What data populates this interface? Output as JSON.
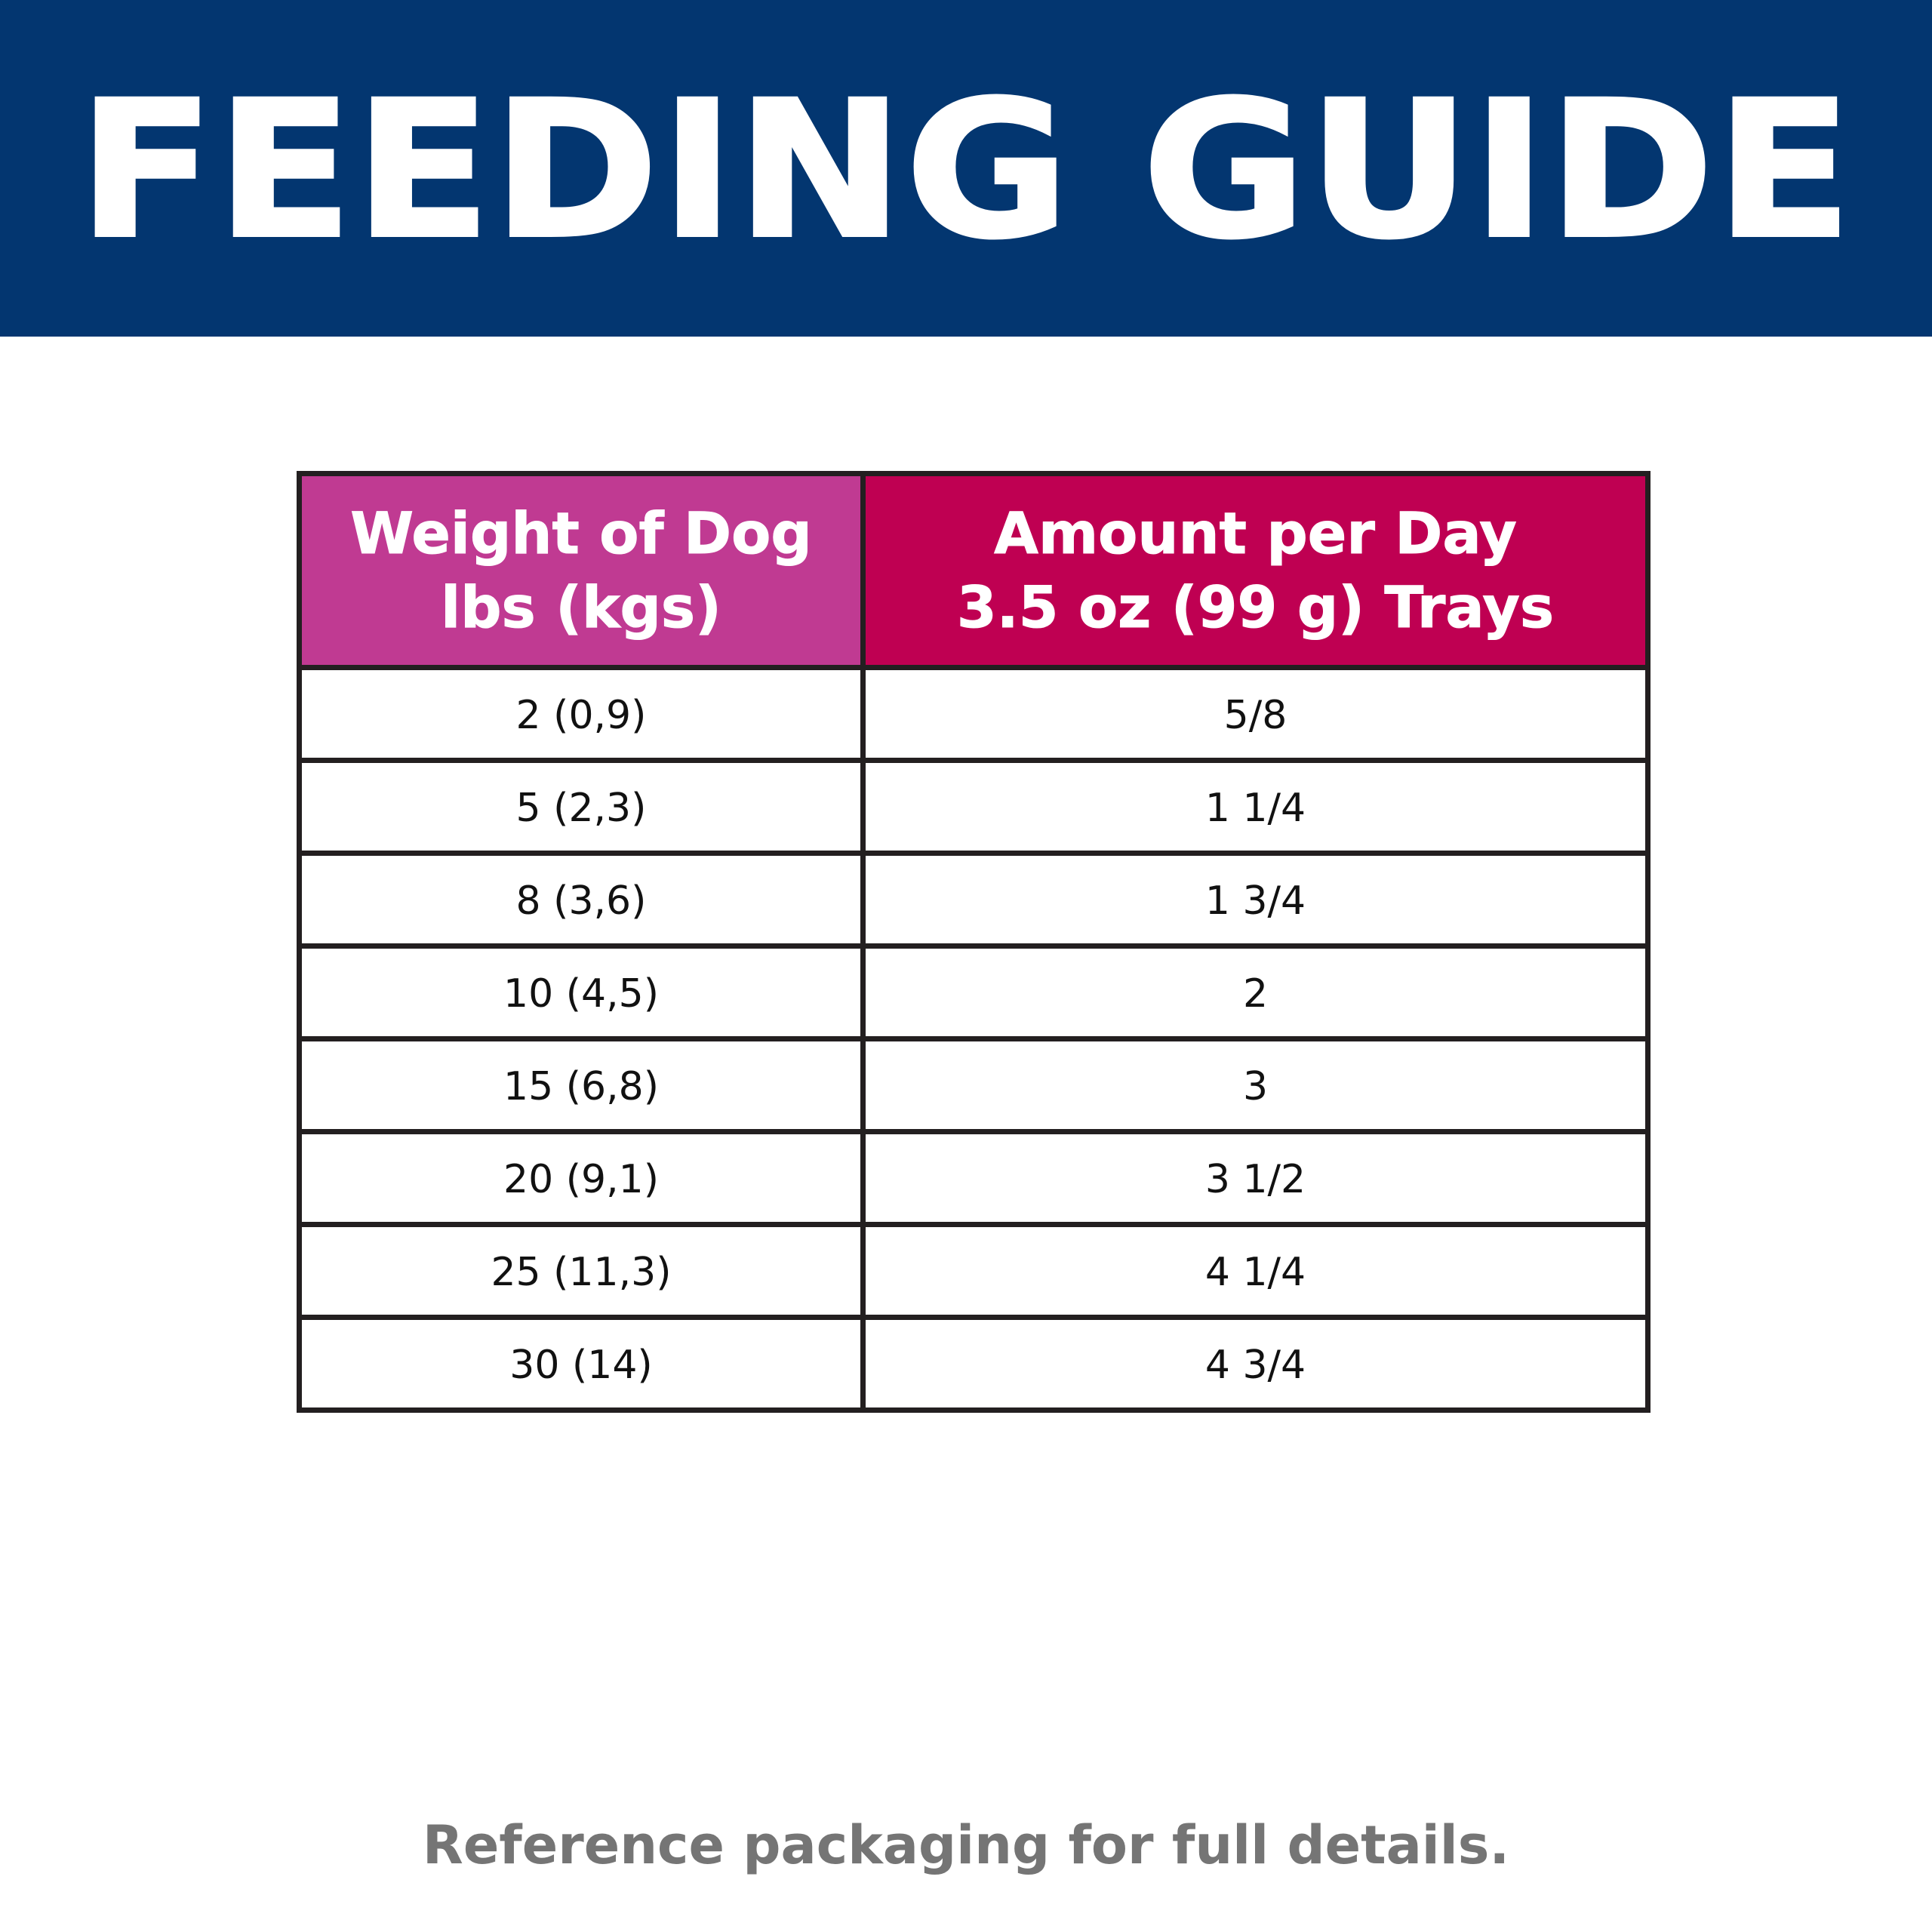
{
  "banner": {
    "title": "FEEDING GUIDE",
    "background_color": "#033670",
    "text_color": "#ffffff"
  },
  "table": {
    "headers": [
      {
        "line1": "Weight of Dog",
        "line2": "lbs (kgs)",
        "background_color": "#c03a92"
      },
      {
        "line1": "Amount per Day",
        "line2": "3.5 oz (99 g) Trays",
        "background_color": "#bf0052"
      }
    ],
    "rows": [
      {
        "weight": "2 (0,9)",
        "amount": "5/8"
      },
      {
        "weight": "5 (2,3)",
        "amount": "1 1/4"
      },
      {
        "weight": "8 (3,6)",
        "amount": "1 3/4"
      },
      {
        "weight": "10 (4,5)",
        "amount": "2"
      },
      {
        "weight": "15 (6,8)",
        "amount": "3"
      },
      {
        "weight": "20 (9,1)",
        "amount": "3 1/2"
      },
      {
        "weight": "25 (11,3)",
        "amount": "4 1/4"
      },
      {
        "weight": "30 (14)",
        "amount": "4 3/4"
      }
    ],
    "border_color": "#231f20"
  },
  "footer": {
    "note": "Reference packaging for full details.",
    "text_color": "#757575"
  }
}
